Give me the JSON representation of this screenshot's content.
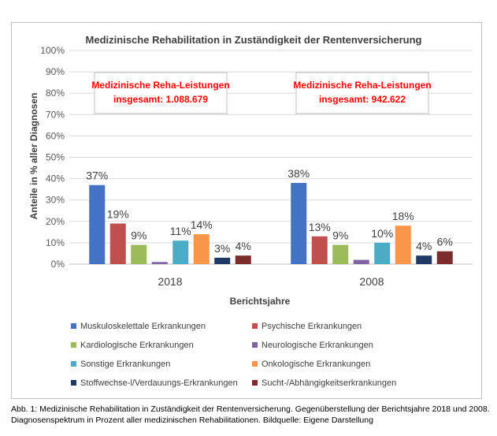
{
  "chart_data": {
    "type": "bar",
    "title": "Medizinische Rehabilitation in Zuständigkeit der Rentenversicherung",
    "xlabel": "Berichtsjahre",
    "ylabel": "Anteile in % aller Diagnosen",
    "ylim": [
      0,
      100
    ],
    "y_ticks": [
      "0%",
      "10%",
      "20%",
      "30%",
      "40%",
      "50%",
      "60%",
      "70%",
      "80%",
      "90%",
      "100%"
    ],
    "categories": [
      "2018",
      "2008"
    ],
    "grid": true,
    "legend_position": "bottom",
    "series": [
      {
        "name": "Muskuloskelettale Erkrankungen",
        "color": "#4472c4",
        "values": [
          37,
          38
        ],
        "labels": [
          "37%",
          "38%"
        ]
      },
      {
        "name": "Psychische Erkrankungen",
        "color": "#c0504d",
        "values": [
          19,
          13
        ],
        "labels": [
          "19%",
          "13%"
        ]
      },
      {
        "name": "Kardiologische Erkrankungen",
        "color": "#9bbb59",
        "values": [
          9,
          9
        ],
        "labels": [
          "9%",
          "9%"
        ]
      },
      {
        "name": "Neurologische Erkrankungen",
        "color": "#8064a2",
        "values": [
          1,
          2
        ],
        "labels": [
          "",
          ""
        ]
      },
      {
        "name": "Sonstige Erkrankungen",
        "color": "#4bacc6",
        "values": [
          11,
          10
        ],
        "labels": [
          "11%",
          "10%"
        ]
      },
      {
        "name": "Onkologische Erkrankungen",
        "color": "#f79646",
        "values": [
          14,
          18
        ],
        "labels": [
          "14%",
          "18%"
        ]
      },
      {
        "name": "Stoffwechse-l/Verdauungs-Erkrankungen",
        "color": "#1f3864",
        "values": [
          3,
          4
        ],
        "labels": [
          "3%",
          "4%"
        ]
      },
      {
        "name": "Sucht-/Abhängigkeitserkrankungen",
        "color": "#7b2c2c",
        "values": [
          4,
          6
        ],
        "labels": [
          "4%",
          "6%"
        ]
      }
    ],
    "annotations": [
      {
        "category": "2018",
        "line1": "Medizinische Reha-Leistungen",
        "line2": "insgesamt: 1.088.679",
        "color": "#ff0000"
      },
      {
        "category": "2008",
        "line1": "Medizinische Reha-Leistungen",
        "line2": "insgesamt: 942.622",
        "color": "#ff0000"
      }
    ]
  },
  "caption": {
    "line1": "Abb. 1: Medizinische Rehabilitation in Zuständigkeit der Rentenversicherung. Gegenüberstellung der Berichtsjahre 2018 und 2008.",
    "line2": "Diagnosenspektrum in Prozent aller medizinischen Rehabilitationen. Bildquelle: Eigene Darstellung"
  }
}
